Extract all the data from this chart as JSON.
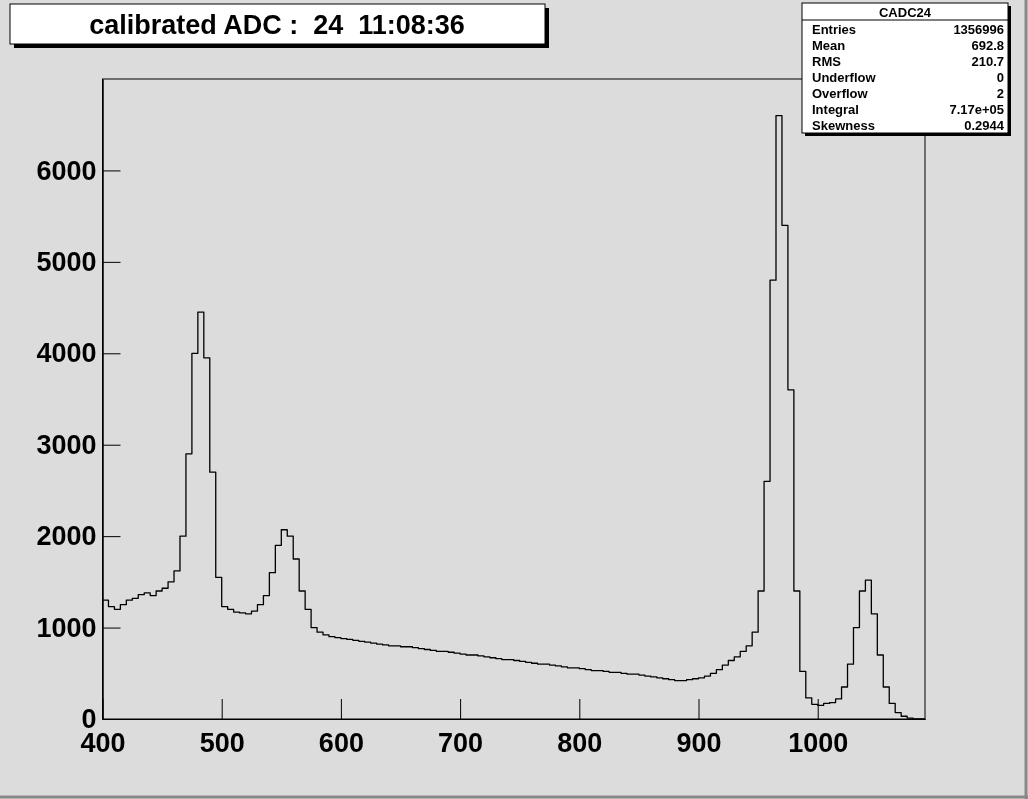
{
  "chart_data": {
    "type": "histogram",
    "title": "calibrated ADC :  24  11:08:36",
    "bins": [
      400,
      405,
      410,
      415,
      420,
      425,
      430,
      435,
      440,
      445,
      450,
      455,
      460,
      465,
      470,
      475,
      480,
      485,
      490,
      495,
      500,
      505,
      510,
      515,
      520,
      525,
      530,
      535,
      540,
      545,
      550,
      555,
      560,
      565,
      570,
      575,
      580,
      585,
      590,
      595,
      600,
      605,
      610,
      615,
      620,
      625,
      630,
      635,
      640,
      645,
      650,
      655,
      660,
      665,
      670,
      675,
      680,
      685,
      690,
      695,
      700,
      705,
      710,
      715,
      720,
      725,
      730,
      735,
      740,
      745,
      750,
      755,
      760,
      765,
      770,
      775,
      780,
      785,
      790,
      795,
      800,
      805,
      810,
      815,
      820,
      825,
      830,
      835,
      840,
      845,
      850,
      855,
      860,
      865,
      870,
      875,
      880,
      885,
      890,
      895,
      900,
      905,
      910,
      915,
      920,
      925,
      930,
      935,
      940,
      945,
      950,
      955,
      960,
      965,
      970,
      975,
      980,
      985,
      990,
      995,
      1000,
      1005,
      1010,
      1015,
      1020,
      1025,
      1030,
      1035,
      1040,
      1045,
      1050,
      1055,
      1060,
      1065,
      1070,
      1075,
      1080,
      1085,
      1090
    ],
    "values": [
      1300,
      1230,
      1200,
      1250,
      1300,
      1320,
      1360,
      1380,
      1350,
      1400,
      1430,
      1500,
      1620,
      2000,
      2900,
      4000,
      4450,
      3950,
      2700,
      1550,
      1230,
      1200,
      1170,
      1160,
      1150,
      1180,
      1250,
      1350,
      1600,
      1900,
      2070,
      2000,
      1750,
      1400,
      1200,
      1000,
      950,
      920,
      900,
      890,
      880,
      870,
      860,
      850,
      840,
      830,
      820,
      810,
      800,
      800,
      790,
      790,
      780,
      770,
      760,
      750,
      740,
      740,
      730,
      720,
      710,
      700,
      700,
      690,
      680,
      670,
      660,
      650,
      650,
      640,
      630,
      620,
      610,
      600,
      600,
      590,
      580,
      570,
      560,
      560,
      550,
      540,
      530,
      530,
      520,
      510,
      510,
      500,
      490,
      490,
      480,
      470,
      460,
      450,
      440,
      430,
      420,
      420,
      430,
      440,
      450,
      470,
      500,
      540,
      590,
      640,
      680,
      740,
      800,
      950,
      1400,
      2600,
      4800,
      6600,
      5400,
      3600,
      1400,
      520,
      230,
      160,
      150,
      170,
      180,
      220,
      350,
      600,
      1000,
      1400,
      1520,
      1150,
      700,
      350,
      170,
      70,
      30,
      10,
      0,
      0
    ],
    "color": "#000000",
    "xlim": [
      400,
      1090
    ],
    "xticks": [
      400,
      500,
      600,
      700,
      800,
      900,
      1000
    ],
    "ylim": [
      0,
      7000
    ],
    "yticks": [
      0,
      1000,
      2000,
      3000,
      4000,
      5000,
      6000
    ],
    "legend_title": "CADC24",
    "annotations": [
      "Entries 1356996",
      "Mean 692.8",
      "RMS 210.7",
      "Underflow 0",
      "Overflow 2",
      "Integral 7.17e+05",
      "Skewness 0.2944"
    ]
  }
}
